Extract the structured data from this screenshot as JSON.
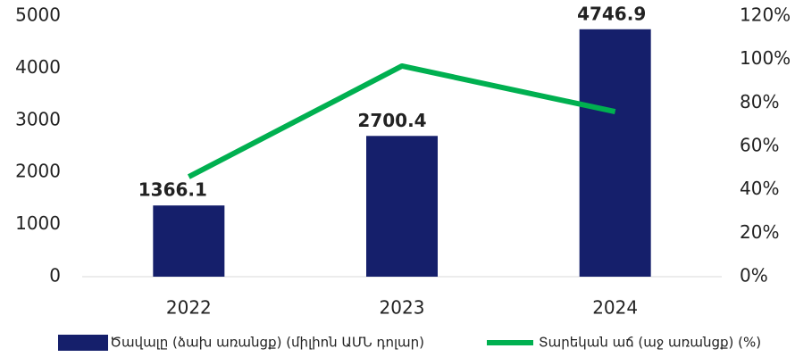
{
  "chart_data": {
    "type": "bar",
    "categories": [
      "2022",
      "2023",
      "2024"
    ],
    "series": [
      {
        "name": "Ծավալը (ձախ առանցք) (միլիոն ԱՄՆ դոլար)",
        "color": "#151f6b",
        "values": [
          1366.1,
          2700.4,
          4746.9
        ]
      },
      {
        "name": "Տարեկան աճ (աջ առանցք) (%)",
        "color": "#00b050",
        "values": [
          46,
          97,
          76
        ],
        "axis": "y2",
        "type": "line"
      }
    ],
    "ylim": [
      0,
      5000
    ],
    "yticks": [
      0,
      1000,
      2000,
      3000,
      4000,
      5000
    ],
    "y2lim": [
      0,
      120
    ],
    "y2ticks": [
      {
        "value": 0,
        "label": "0%"
      },
      {
        "value": 20,
        "label": "20%"
      },
      {
        "value": 40,
        "label": "40%"
      },
      {
        "value": 60,
        "label": "60%"
      },
      {
        "value": 80,
        "label": "80%"
      },
      {
        "value": 100,
        "label": "100%"
      },
      {
        "value": 120,
        "label": "120%"
      }
    ],
    "grid": false,
    "legend": "bottom"
  }
}
